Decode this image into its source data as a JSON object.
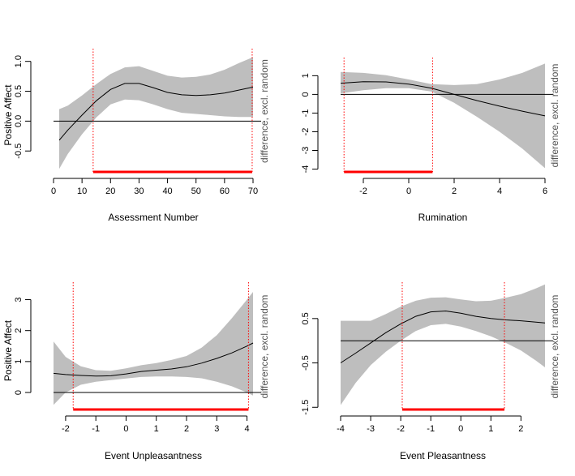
{
  "chart_data": [
    {
      "type": "line",
      "xlabel": "Assessment Number",
      "ylabel": "Positive Affect",
      "side_label": "difference, excl. random",
      "xlim": [
        0,
        70
      ],
      "ylim": [
        -0.85,
        1.05
      ],
      "x_ticks": [
        0,
        10,
        20,
        30,
        40,
        50,
        60,
        70
      ],
      "y_ticks": [
        -0.5,
        0.0,
        0.5,
        1.0
      ],
      "y_tick_labels": [
        "-0.5",
        "0.0",
        "0.5",
        "1.0"
      ],
      "reference_line": 0,
      "vlines": [
        13.9,
        69.7
      ],
      "significant_range": [
        13.9,
        69.7
      ],
      "x": [
        2,
        5,
        10,
        15,
        20,
        25,
        30,
        35,
        40,
        45,
        50,
        55,
        60,
        65,
        70
      ],
      "y": [
        -0.32,
        -0.15,
        0.1,
        0.34,
        0.53,
        0.63,
        0.63,
        0.56,
        0.48,
        0.44,
        0.43,
        0.44,
        0.47,
        0.52,
        0.57
      ],
      "lower": [
        -0.8,
        -0.55,
        -0.22,
        0.06,
        0.28,
        0.36,
        0.35,
        0.28,
        0.2,
        0.14,
        0.12,
        0.1,
        0.08,
        0.07,
        0.07
      ],
      "upper": [
        0.2,
        0.26,
        0.43,
        0.62,
        0.79,
        0.9,
        0.92,
        0.84,
        0.76,
        0.73,
        0.74,
        0.78,
        0.86,
        0.97,
        1.07
      ],
      "colors": {
        "band": "#bebebe",
        "line": "#000000",
        "vline": "#ff0000",
        "sig": "#ff0000"
      }
    },
    {
      "type": "line",
      "xlabel": "Rumination",
      "ylabel": "",
      "side_label": "difference, excl. random",
      "xlim": [
        -3,
        6
      ],
      "ylim": [
        -4.15,
        1.45
      ],
      "x_ticks": [
        -2,
        0,
        2,
        4,
        6
      ],
      "y_ticks": [
        -4,
        -3,
        -2,
        -1,
        0,
        1
      ],
      "y_tick_labels": [
        "-4",
        "-3",
        "-2",
        "-1",
        "0",
        "1"
      ],
      "reference_line": 0,
      "vlines": [
        -2.85,
        1.05
      ],
      "significant_range": [
        -2.85,
        1.05
      ],
      "x": [
        -3,
        -2,
        -1,
        0,
        1,
        2,
        3,
        4,
        5,
        6
      ],
      "y": [
        0.6,
        0.68,
        0.67,
        0.55,
        0.33,
        0.0,
        -0.33,
        -0.63,
        -0.9,
        -1.15
      ],
      "lower": [
        0.05,
        0.22,
        0.33,
        0.33,
        0.15,
        -0.45,
        -1.2,
        -2.0,
        -2.9,
        -3.95
      ],
      "upper": [
        1.2,
        1.15,
        1.03,
        0.8,
        0.55,
        0.5,
        0.55,
        0.8,
        1.15,
        1.65
      ],
      "colors": {
        "band": "#bebebe",
        "line": "#000000",
        "vline": "#ff0000",
        "sig": "#ff0000"
      }
    },
    {
      "type": "line",
      "xlabel": "Event Unpleasantness",
      "ylabel": "Positive Affect",
      "side_label": "difference, excl. random",
      "xlim": [
        -2.4,
        4.2
      ],
      "ylim": [
        -0.55,
        3.25
      ],
      "x_ticks": [
        -2,
        -1,
        0,
        1,
        2,
        3,
        4
      ],
      "y_ticks": [
        0,
        1,
        2,
        3
      ],
      "y_tick_labels": [
        "0",
        "1",
        "2",
        "3"
      ],
      "reference_line": 0,
      "vlines": [
        -1.75,
        4.05
      ],
      "significant_range": [
        -1.75,
        4.05
      ],
      "x": [
        -2.4,
        -2,
        -1.5,
        -1,
        -0.5,
        0,
        0.5,
        1,
        1.5,
        2,
        2.5,
        3,
        3.5,
        4,
        4.2
      ],
      "y": [
        0.62,
        0.58,
        0.55,
        0.53,
        0.54,
        0.6,
        0.68,
        0.72,
        0.76,
        0.83,
        0.95,
        1.1,
        1.28,
        1.5,
        1.6
      ],
      "lower": [
        -0.4,
        0.0,
        0.25,
        0.35,
        0.4,
        0.45,
        0.5,
        0.52,
        0.52,
        0.5,
        0.46,
        0.35,
        0.2,
        0.0,
        -0.1
      ],
      "upper": [
        1.65,
        1.15,
        0.85,
        0.72,
        0.7,
        0.78,
        0.88,
        0.95,
        1.05,
        1.18,
        1.45,
        1.85,
        2.4,
        3.0,
        3.25
      ],
      "colors": {
        "band": "#bebebe",
        "line": "#000000",
        "vline": "#ff0000",
        "sig": "#ff0000"
      }
    },
    {
      "type": "line",
      "xlabel": "Event Pleasantness",
      "ylabel": "",
      "side_label": "difference, excl. random",
      "xlim": [
        -4,
        2.8
      ],
      "ylim": [
        -1.55,
        1.1
      ],
      "x_ticks": [
        -4,
        -3,
        -2,
        -1,
        0,
        1,
        2
      ],
      "y_ticks": [
        -1.5,
        -0.5,
        0.5
      ],
      "y_tick_labels": [
        "-1.5",
        "-0.5",
        "0.5"
      ],
      "reference_line": 0,
      "vlines": [
        -1.95,
        1.45
      ],
      "significant_range": [
        -1.95,
        1.45
      ],
      "x": [
        -4,
        -3.5,
        -3,
        -2.5,
        -2,
        -1.5,
        -1,
        -0.5,
        0,
        0.5,
        1,
        1.5,
        2,
        2.5,
        2.8
      ],
      "y": [
        -0.5,
        -0.28,
        -0.05,
        0.18,
        0.38,
        0.55,
        0.65,
        0.67,
        0.62,
        0.55,
        0.5,
        0.47,
        0.45,
        0.42,
        0.4
      ],
      "lower": [
        -1.45,
        -0.95,
        -0.55,
        -0.25,
        0.0,
        0.22,
        0.35,
        0.38,
        0.32,
        0.22,
        0.1,
        -0.05,
        -0.22,
        -0.45,
        -0.6
      ],
      "upper": [
        0.45,
        0.45,
        0.45,
        0.6,
        0.77,
        0.9,
        0.97,
        0.98,
        0.93,
        0.89,
        0.9,
        0.97,
        1.05,
        1.18,
        1.27
      ],
      "colors": {
        "band": "#bebebe",
        "line": "#000000",
        "vline": "#ff0000",
        "sig": "#ff0000"
      }
    }
  ]
}
